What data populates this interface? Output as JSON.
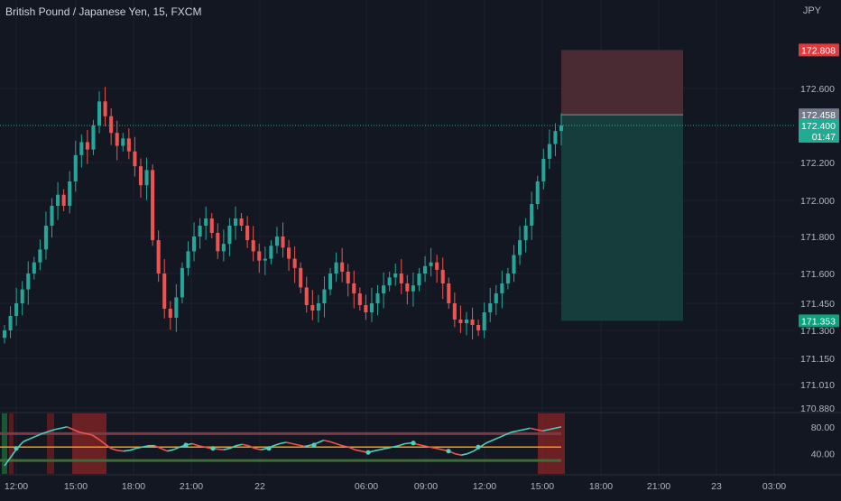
{
  "header": {
    "symbol_title": "British Pound / Japanese Yen, 15, FXCM",
    "currency": "JPY"
  },
  "colors": {
    "background": "#131722",
    "grid": "#1e222d",
    "up": "#26a69a",
    "down": "#ef5350",
    "stop_zone": "#4a2a33",
    "target_zone": "#163c3b",
    "stop_label": "#e03a3e",
    "target_label": "#0ba37d",
    "entry_label": "#737a89",
    "last_price_label": "#22ab94",
    "osc_line_up": "#4dd0c0",
    "osc_line_down": "#ef5350",
    "osc_mid": "#ff9800",
    "osc_top": "#7b3a44",
    "osc_bottom": "#3f6b37"
  },
  "chart_data": [
    {
      "type": "candlestick",
      "title": "British Pound / Japanese Yen, 15, FXCM",
      "y_unit": "JPY",
      "ylim": [
        170.85,
        172.9
      ],
      "x_tick_labels": [
        "12:00",
        "15:00",
        "18:00",
        "21:00",
        "22",
        "06:00",
        "09:00",
        "12:00",
        "15:00",
        "18:00",
        "21:00",
        "23",
        "03:00"
      ],
      "y_tick_labels": [
        "172.600",
        "172.200",
        "172.000",
        "171.800",
        "171.600",
        "171.450",
        "171.300",
        "171.150",
        "171.010",
        "170.880"
      ],
      "close_series": [
        171.3,
        171.38,
        171.45,
        171.52,
        171.6,
        171.66,
        171.73,
        171.86,
        171.97,
        172.03,
        171.97,
        172.1,
        172.24,
        172.31,
        172.27,
        172.4,
        172.53,
        172.45,
        172.36,
        172.29,
        172.33,
        172.26,
        172.18,
        172.08,
        172.16,
        171.78,
        171.6,
        171.42,
        171.37,
        171.48,
        171.63,
        171.72,
        171.8,
        171.86,
        171.9,
        171.82,
        171.72,
        171.76,
        171.86,
        171.9,
        171.86,
        171.78,
        171.72,
        171.67,
        171.68,
        171.75,
        171.8,
        171.74,
        171.68,
        171.63,
        171.53,
        171.44,
        171.41,
        171.45,
        171.52,
        171.6,
        171.66,
        171.61,
        171.55,
        171.5,
        171.44,
        171.4,
        171.45,
        171.5,
        171.54,
        171.58,
        171.6,
        171.55,
        171.51,
        171.54,
        171.6,
        171.64,
        171.66,
        171.62,
        171.55,
        171.45,
        171.36,
        171.34,
        171.36,
        171.33,
        171.3,
        171.4,
        171.45,
        171.5,
        171.55,
        171.6,
        171.7,
        171.78,
        171.86,
        171.98,
        172.1,
        172.22,
        172.3,
        172.37,
        172.4
      ],
      "price_levels": {
        "stop_loss": 172.808,
        "entry": 172.458,
        "current": 172.4,
        "take_profit": 171.353
      },
      "labels": {
        "stop_loss": "172.808",
        "entry": "172.458",
        "current": "172.400",
        "countdown": "01:47",
        "take_profit": "171.353"
      }
    },
    {
      "type": "line",
      "title": "",
      "ylim": [
        10,
        100
      ],
      "y_tick_labels": [
        "80.00",
        "40.00"
      ],
      "levels": {
        "upper": 70,
        "middle": 50,
        "lower": 30
      },
      "series": [
        {
          "values": [
            22,
            35,
            48,
            58,
            62,
            66,
            70,
            73,
            76,
            78,
            80,
            76,
            72,
            70,
            68,
            62,
            55,
            48,
            45,
            44,
            45,
            48,
            50,
            52,
            52,
            48,
            44,
            46,
            50,
            53,
            55,
            52,
            50,
            48,
            47,
            46,
            48,
            52,
            54,
            52,
            48,
            46,
            48,
            52,
            55,
            57,
            55,
            53,
            51,
            53,
            56,
            60,
            58,
            55,
            52,
            50,
            46,
            44,
            42,
            44,
            46,
            48,
            50,
            52,
            55,
            56,
            54,
            52,
            50,
            48,
            46,
            44,
            40,
            38,
            40,
            44,
            50,
            56,
            60,
            64,
            68,
            72,
            74,
            76,
            78,
            76,
            74,
            76,
            78,
            80
          ]
        }
      ]
    }
  ]
}
